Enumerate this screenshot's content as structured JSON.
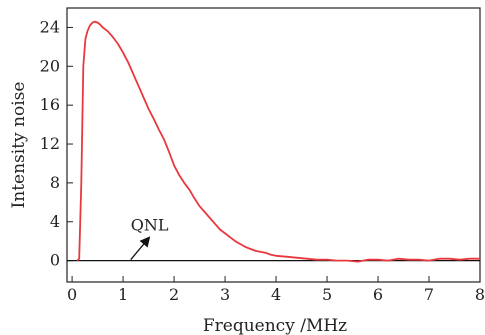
{
  "chart_data": {
    "type": "line",
    "title": "",
    "xlabel": "Frequency /MHz",
    "ylabel": "Intensity noise",
    "xlim": [
      -0.1,
      8.0
    ],
    "ylim": [
      -2.2,
      26.0
    ],
    "xticks": [
      0,
      1,
      2,
      3,
      4,
      5,
      6,
      7,
      8
    ],
    "yticks": [
      0,
      4,
      8,
      12,
      16,
      20,
      24
    ],
    "grid": false,
    "series": [
      {
        "color": "#e8383d",
        "x": [
          0.1,
          0.14,
          0.18,
          0.22,
          0.26,
          0.3,
          0.35,
          0.4,
          0.45,
          0.5,
          0.55,
          0.6,
          0.7,
          0.8,
          0.9,
          1.0,
          1.1,
          1.2,
          1.3,
          1.4,
          1.5,
          1.6,
          1.7,
          1.8,
          1.9,
          2.0,
          2.1,
          2.2,
          2.3,
          2.4,
          2.5,
          2.6,
          2.7,
          2.8,
          2.9,
          3.0,
          3.1,
          3.2,
          3.3,
          3.4,
          3.5,
          3.6,
          3.7,
          3.8,
          3.9,
          4.0,
          4.2,
          4.4,
          4.6,
          4.8,
          5.0,
          5.2,
          5.4,
          5.6,
          5.8,
          6.0,
          6.2,
          6.4,
          6.6,
          6.8,
          7.0,
          7.2,
          7.4,
          7.6,
          7.8,
          8.0
        ],
        "y": [
          0.0,
          0.2,
          8.0,
          20.0,
          22.8,
          23.6,
          24.2,
          24.5,
          24.6,
          24.5,
          24.3,
          24.0,
          23.6,
          23.0,
          22.3,
          21.4,
          20.4,
          19.2,
          18.0,
          16.8,
          15.6,
          14.6,
          13.5,
          12.5,
          11.2,
          9.8,
          8.8,
          8.0,
          7.3,
          6.4,
          5.6,
          5.0,
          4.4,
          3.8,
          3.2,
          2.8,
          2.4,
          2.0,
          1.7,
          1.4,
          1.2,
          1.0,
          0.9,
          0.8,
          0.6,
          0.5,
          0.4,
          0.3,
          0.2,
          0.1,
          0.1,
          0.0,
          0.0,
          -0.1,
          0.1,
          0.1,
          0.0,
          0.2,
          0.1,
          0.1,
          0.0,
          0.2,
          0.2,
          0.1,
          0.2,
          0.2
        ]
      }
    ],
    "baseline": {
      "y": 0,
      "color": "#111111"
    },
    "annotations": [
      {
        "text": "QNL",
        "text_x": 1.15,
        "text_y": 2.7,
        "arrow_from_x": 1.15,
        "arrow_from_y": 0.1,
        "arrow_to_x": 1.5,
        "arrow_to_y": 2.3
      }
    ]
  }
}
